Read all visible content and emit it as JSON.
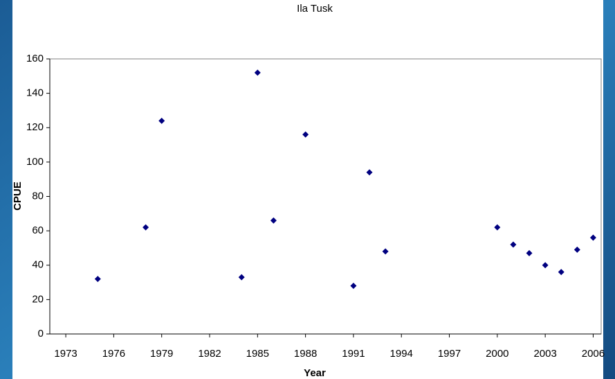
{
  "chart_data": {
    "type": "scatter",
    "title": "Ila Tusk",
    "x_label": "Year",
    "y_label": "CPUE",
    "x": [
      1975,
      1978,
      1979,
      1984,
      1985,
      1986,
      1988,
      1991,
      1992,
      1993,
      2000,
      2001,
      2002,
      2003,
      2004,
      2005,
      2006
    ],
    "series": [
      {
        "color": "#000080",
        "values": [
          32,
          62,
          124,
          33,
          152,
          66,
          116,
          28,
          94,
          48,
          62,
          52,
          47,
          40,
          36,
          49,
          56
        ]
      }
    ],
    "xlim": [
      1972,
      2006.5
    ],
    "xticks": [
      1973,
      1976,
      1979,
      1982,
      1985,
      1988,
      1991,
      1994,
      1997,
      2000,
      2003,
      2006
    ],
    "ylim": [
      0,
      160
    ],
    "yticks": [
      0,
      20,
      40,
      60,
      80,
      100,
      120,
      140,
      160
    ],
    "grid": false
  }
}
